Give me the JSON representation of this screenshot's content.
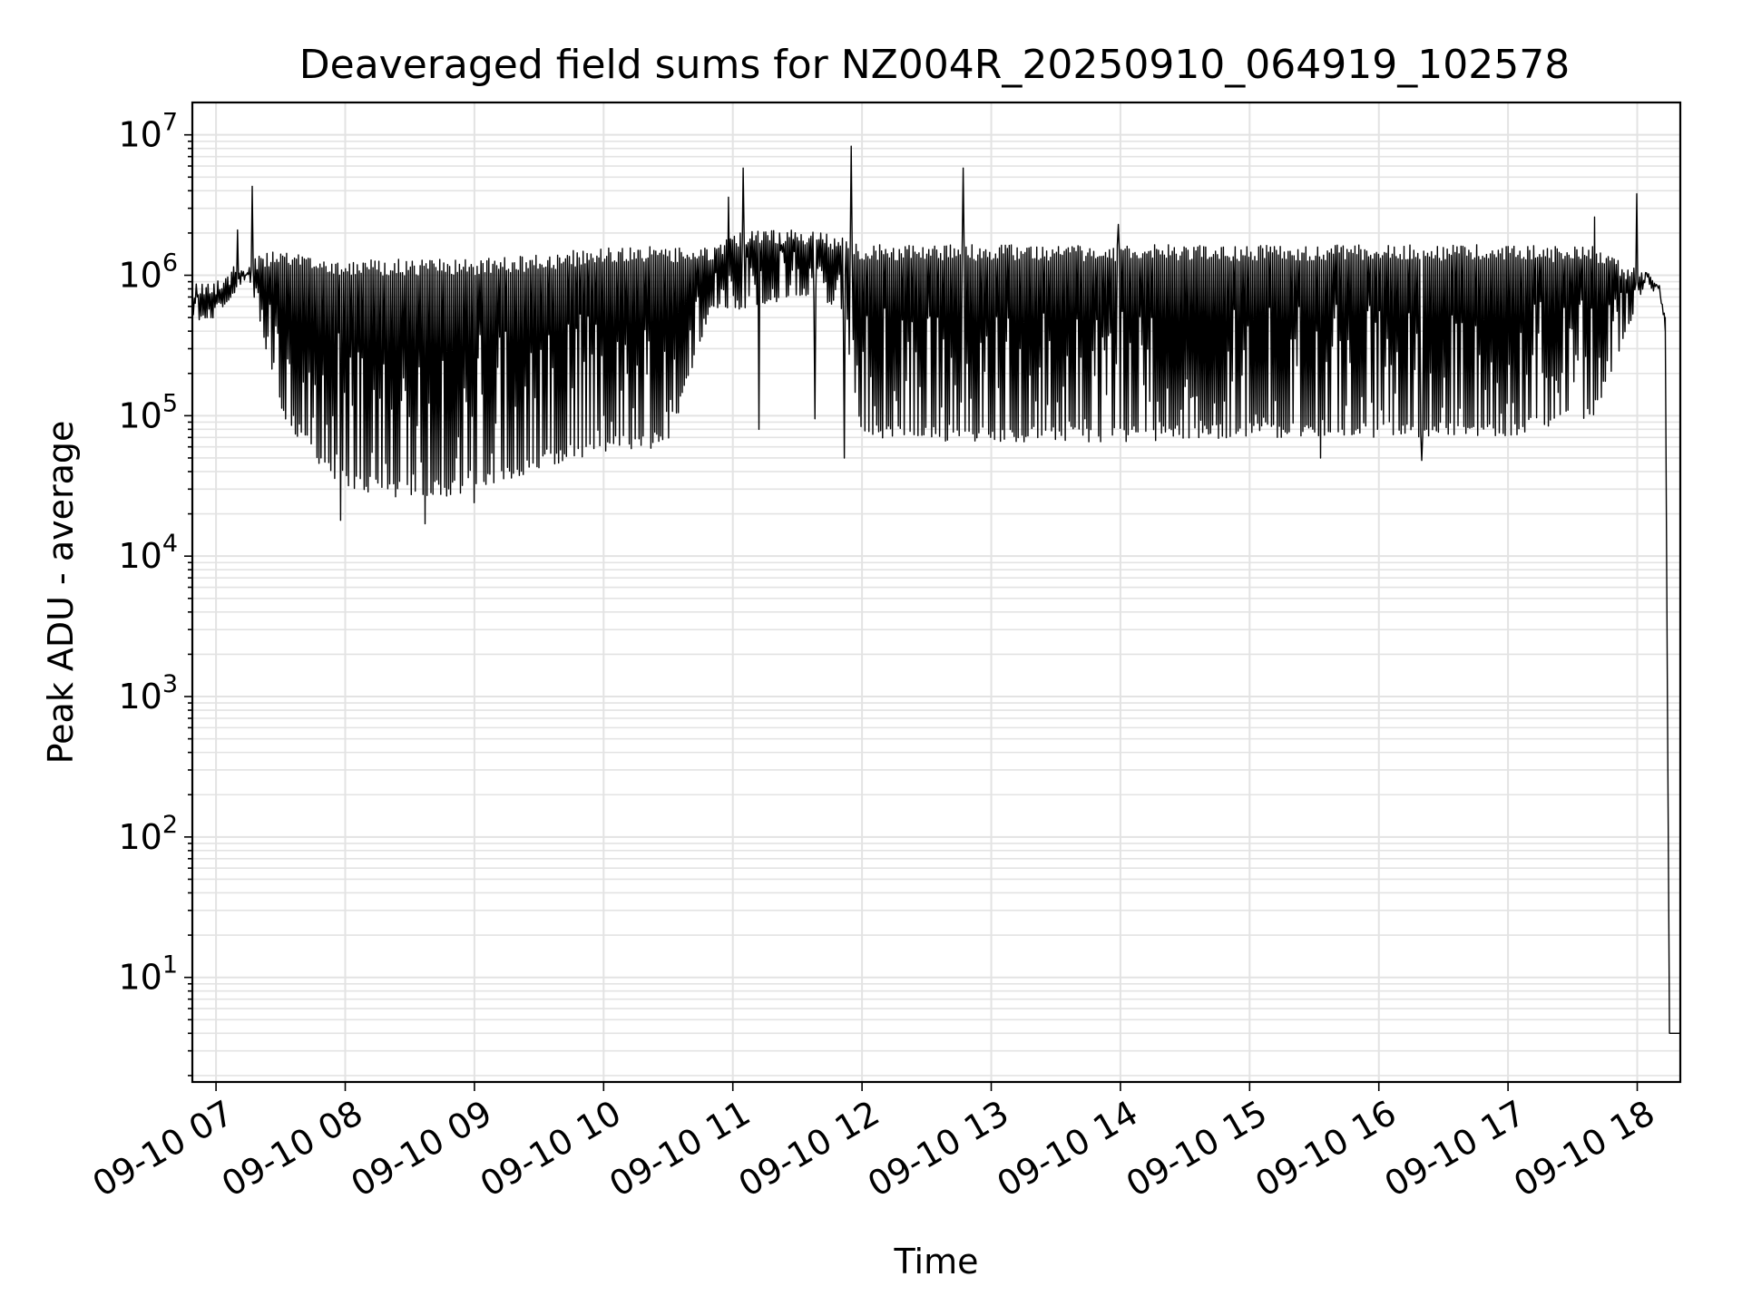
{
  "chart_data": {
    "type": "line",
    "title": "Deaveraged field sums for NZ004R_20250910_064919_102578",
    "xlabel": "Time",
    "ylabel": "Peak ADU - average",
    "yscale": "log",
    "ylim": [
      1.8,
      17000000
    ],
    "xlim": [
      "2025-09-10 06:49",
      "2025-09-10 18:20"
    ],
    "grid": true,
    "line_color": "#000000",
    "x_ticks": [
      "09-10 07",
      "09-10 08",
      "09-10 09",
      "09-10 10",
      "09-10 11",
      "09-10 12",
      "09-10 13",
      "09-10 14",
      "09-10 15",
      "09-10 16",
      "09-10 17",
      "09-10 18"
    ],
    "y_ticks": [
      {
        "base": "10",
        "exp": "1",
        "value": 10
      },
      {
        "base": "10",
        "exp": "2",
        "value": 100
      },
      {
        "base": "10",
        "exp": "3",
        "value": 1000
      },
      {
        "base": "10",
        "exp": "4",
        "value": 10000
      },
      {
        "base": "10",
        "exp": "5",
        "value": 100000
      },
      {
        "base": "10",
        "exp": "6",
        "value": 1000000
      },
      {
        "base": "10",
        "exp": "7",
        "value": 10000000
      }
    ],
    "series": [
      {
        "envelope": {
          "time": [
            "2025-09-10 06:49",
            "2025-09-10 07:00",
            "2025-09-10 07:15",
            "2025-09-10 07:30",
            "2025-09-10 07:45",
            "2025-09-10 08:00",
            "2025-09-10 08:30",
            "2025-09-10 09:00",
            "2025-09-10 09:30",
            "2025-09-10 10:00",
            "2025-09-10 10:30",
            "2025-09-10 10:50",
            "2025-09-10 11:00",
            "2025-09-10 11:30",
            "2025-09-10 11:50",
            "2025-09-10 12:00",
            "2025-09-10 12:30",
            "2025-09-10 13:00",
            "2025-09-10 14:00",
            "2025-09-10 15:00",
            "2025-09-10 16:00",
            "2025-09-10 17:00",
            "2025-09-10 17:40",
            "2025-09-10 18:00",
            "2025-09-10 18:05",
            "2025-09-10 18:10",
            "2025-09-10 18:13"
          ],
          "upper": [
            900000,
            950000,
            1350000,
            1500000,
            1400000,
            1300000,
            1300000,
            1300000,
            1400000,
            1600000,
            1600000,
            1550000,
            2000000,
            2200000,
            1900000,
            1650000,
            1650000,
            1650000,
            1650000,
            1650000,
            1650000,
            1650000,
            1600000,
            1100000,
            1100000,
            900000,
            500000
          ],
          "lower": [
            450000,
            500000,
            1000000,
            100000,
            50000,
            30000,
            25000,
            28000,
            40000,
            55000,
            60000,
            600000,
            550000,
            700000,
            600000,
            70000,
            65000,
            65000,
            65000,
            70000,
            70000,
            70000,
            100000,
            600000,
            1000000,
            800000,
            500000
          ]
        },
        "tail": {
          "time": [
            "2025-09-10 18:13",
            "2025-09-10 18:14",
            "2025-09-10 18:15",
            "2025-09-10 18:20"
          ],
          "value": [
            500000,
            1000,
            4,
            4
          ]
        },
        "spikes": [
          {
            "time": "2025-09-10 07:17",
            "value": 4300000
          },
          {
            "time": "2025-09-10 07:10",
            "value": 2100000
          },
          {
            "time": "2025-09-10 10:58",
            "value": 3600000
          },
          {
            "time": "2025-09-10 11:05",
            "value": 5800000
          },
          {
            "time": "2025-09-10 11:55",
            "value": 8300000
          },
          {
            "time": "2025-09-10 12:47",
            "value": 5800000
          },
          {
            "time": "2025-09-10 13:59",
            "value": 2300000
          },
          {
            "time": "2025-09-10 17:40",
            "value": 2600000
          },
          {
            "time": "2025-09-10 18:00",
            "value": 3800000
          }
        ],
        "dips": [
          {
            "time": "2025-09-10 07:58",
            "value": 18000
          },
          {
            "time": "2025-09-10 08:37",
            "value": 17000
          },
          {
            "time": "2025-09-10 09:00",
            "value": 24000
          },
          {
            "time": "2025-09-10 11:12",
            "value": 80000
          },
          {
            "time": "2025-09-10 11:38",
            "value": 95000
          },
          {
            "time": "2025-09-10 11:52",
            "value": 50000
          },
          {
            "time": "2025-09-10 15:33",
            "value": 50000
          },
          {
            "time": "2025-09-10 16:20",
            "value": 48000
          }
        ]
      }
    ]
  }
}
